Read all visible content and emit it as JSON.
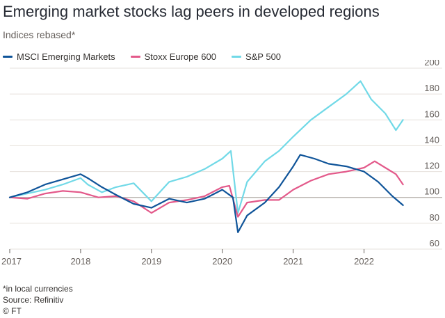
{
  "title": "Emerging market stocks lag peers in developed regions",
  "subtitle": "Indices rebased*",
  "footnote": "*in local currencies",
  "source": "Source: Refinitiv",
  "credit": "© FT",
  "chart_data": {
    "type": "line",
    "title": "Emerging market stocks lag peers in developed regions",
    "subtitle": "Indices rebased*",
    "xlabel": "",
    "ylabel": "",
    "xlim": [
      2017.0,
      2022.75
    ],
    "ylim": [
      60,
      200
    ],
    "y_ticks": [
      60,
      80,
      100,
      120,
      140,
      160,
      180,
      200
    ],
    "x_ticks": [
      "2017",
      "2018",
      "2019",
      "2020",
      "2021",
      "2022"
    ],
    "x_tick_values": [
      2017,
      2018,
      2019,
      2020,
      2021,
      2022
    ],
    "grid": true,
    "legend_position": "top",
    "series": [
      {
        "name": "MSCI Emerging Markets",
        "color": "#0f5499",
        "x": [
          2017.0,
          2017.25,
          2017.5,
          2017.75,
          2018.0,
          2018.1,
          2018.3,
          2018.5,
          2018.75,
          2019.0,
          2019.25,
          2019.5,
          2019.75,
          2020.0,
          2020.15,
          2020.22,
          2020.35,
          2020.6,
          2020.8,
          2021.0,
          2021.1,
          2021.3,
          2021.5,
          2021.75,
          2022.0,
          2022.2,
          2022.4,
          2022.55
        ],
        "y": [
          100,
          104,
          110,
          114,
          118,
          115,
          108,
          102,
          95,
          92,
          99,
          96,
          99,
          106,
          100,
          73,
          86,
          96,
          108,
          124,
          133,
          130,
          126,
          124,
          120,
          112,
          101,
          94
        ]
      },
      {
        "name": "Stoxx Europe 600",
        "color": "#e3598a",
        "x": [
          2017.0,
          2017.25,
          2017.5,
          2017.75,
          2018.0,
          2018.25,
          2018.5,
          2018.75,
          2019.0,
          2019.25,
          2019.5,
          2019.75,
          2020.0,
          2020.1,
          2020.22,
          2020.35,
          2020.6,
          2020.8,
          2021.0,
          2021.25,
          2021.5,
          2021.75,
          2022.0,
          2022.15,
          2022.3,
          2022.45,
          2022.55
        ],
        "y": [
          100,
          99,
          103,
          105,
          104,
          100,
          101,
          97,
          88,
          96,
          98,
          101,
          108,
          109,
          85,
          96,
          98,
          98,
          106,
          113,
          118,
          120,
          123,
          128,
          123,
          118,
          110
        ]
      },
      {
        "name": "S&P 500",
        "color": "#71d9e7",
        "x": [
          2017.0,
          2017.25,
          2017.5,
          2017.75,
          2018.0,
          2018.1,
          2018.3,
          2018.5,
          2018.75,
          2019.0,
          2019.25,
          2019.5,
          2019.75,
          2020.0,
          2020.12,
          2020.22,
          2020.35,
          2020.6,
          2020.8,
          2021.0,
          2021.25,
          2021.5,
          2021.75,
          2021.95,
          2022.1,
          2022.3,
          2022.45,
          2022.55
        ],
        "y": [
          100,
          103,
          106,
          110,
          115,
          110,
          104,
          108,
          111,
          97,
          112,
          116,
          122,
          130,
          136,
          88,
          112,
          128,
          136,
          147,
          160,
          170,
          180,
          190,
          176,
          165,
          152,
          160
        ]
      }
    ]
  }
}
